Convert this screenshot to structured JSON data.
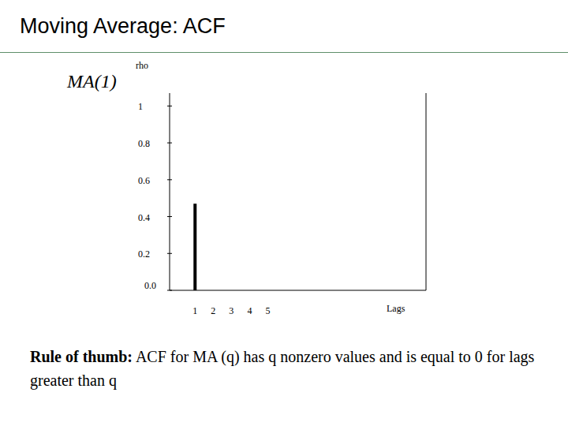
{
  "chart_data": {
    "type": "bar",
    "title": "Moving Average: ACF",
    "subtitle": "MA(1)",
    "ylabel": "rho",
    "xlabel": "Lags",
    "x": [
      1,
      2,
      3,
      4,
      5
    ],
    "values": [
      0.47,
      0,
      0,
      0,
      0
    ],
    "color": "#000000",
    "xlim": [
      -0.4,
      13.7
    ],
    "xticks": [
      1,
      2,
      3,
      4,
      5
    ],
    "ylim": [
      0,
      1.07
    ],
    "yticks": [
      {
        "value": 0,
        "label": "0.0"
      },
      0.2,
      0.4,
      0.6,
      0.8,
      1
    ],
    "grid": false,
    "note": {
      "label": "Rule of thumb:",
      "text": "ACF for MA (q) has q nonzero values and is equal to 0 for lags greater than q"
    }
  }
}
